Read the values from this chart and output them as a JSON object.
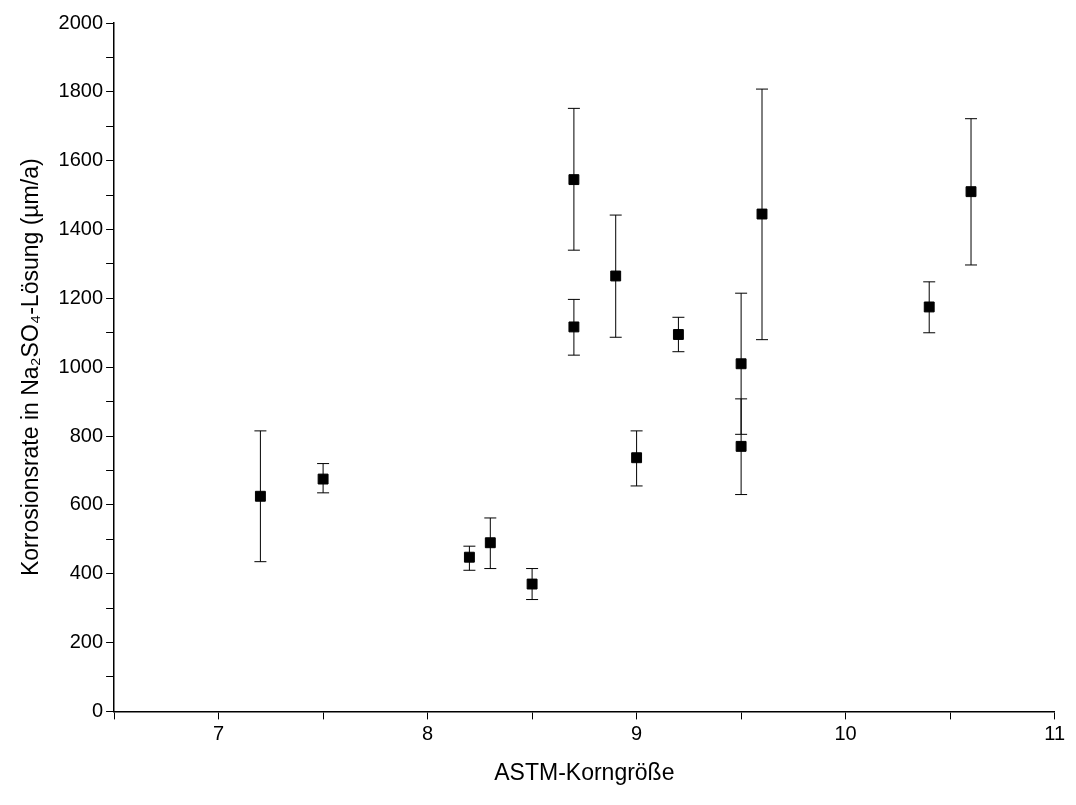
{
  "chart_data": {
    "type": "scatter",
    "xlabel": "ASTM-Korngröße",
    "ylabel": "Korrosionsrate in Na₂SO₄-Lösung (µm/a)",
    "xlim": [
      6.5,
      11
    ],
    "xticks": [
      {
        "value": 6.5,
        "label": null
      },
      7,
      {
        "value": 7.5,
        "label": null
      },
      8,
      {
        "value": 8.5,
        "label": null
      },
      9,
      {
        "value": 9.5,
        "label": null
      },
      10,
      {
        "value": 10.5,
        "label": null
      },
      11
    ],
    "ylim": [
      0,
      2000
    ],
    "yticks": [
      0,
      {
        "value": 100,
        "label": null
      },
      200,
      {
        "value": 300,
        "label": null
      },
      400,
      {
        "value": 500,
        "label": null
      },
      600,
      {
        "value": 700,
        "label": null
      },
      800,
      {
        "value": 900,
        "label": null
      },
      1000,
      {
        "value": 1100,
        "label": null
      },
      1200,
      {
        "value": 1300,
        "label": null
      },
      1400,
      {
        "value": 1500,
        "label": null
      },
      1600,
      {
        "value": 1700,
        "label": null
      },
      1800,
      {
        "value": 1900,
        "label": null
      },
      2000
    ],
    "grid": false,
    "legend": false,
    "marker": "square",
    "series": [
      {
        "color": "#000000",
        "x": [
          7.2,
          7.5,
          8.2,
          8.3,
          8.5,
          8.7,
          8.7,
          8.9,
          9.0,
          9.2,
          9.5,
          9.5,
          9.6,
          10.4,
          10.6
        ],
        "values": [
          625,
          675,
          448,
          490,
          370,
          1545,
          1117,
          1265,
          737,
          1095,
          1010,
          770,
          1445,
          1175,
          1510
        ],
        "errors": [
          [
            435,
            815
          ],
          [
            635,
            720
          ],
          [
            410,
            480
          ],
          [
            415,
            562
          ],
          [
            325,
            415
          ],
          [
            1340,
            1752
          ],
          [
            1035,
            1197
          ],
          [
            1087,
            1442
          ],
          [
            655,
            815
          ],
          [
            1045,
            1145
          ],
          [
            805,
            1215
          ],
          [
            630,
            908
          ],
          [
            1080,
            1808
          ],
          [
            1100,
            1248
          ],
          [
            1297,
            1722
          ]
        ]
      }
    ]
  }
}
